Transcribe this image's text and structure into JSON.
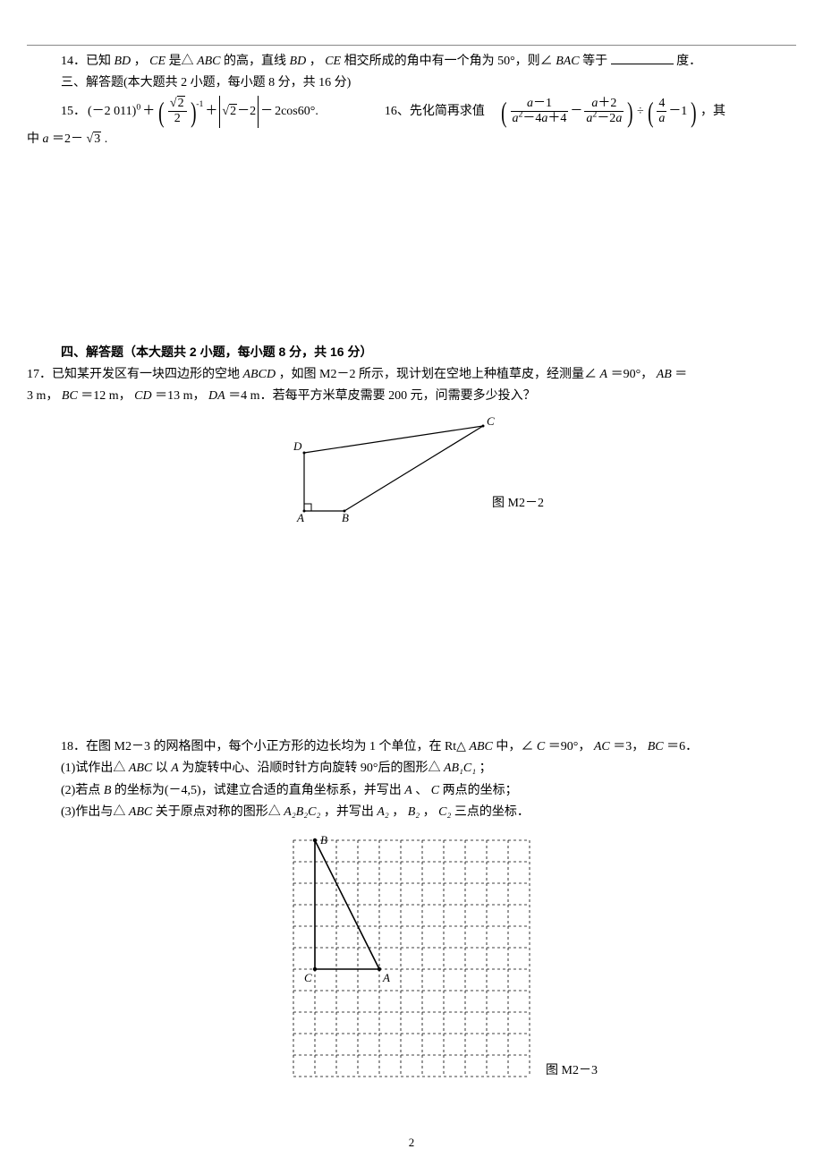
{
  "q14": {
    "prefix": "14．已知 ",
    "bd": "BD",
    "sep1": "，",
    "ce": "CE",
    "t1": " 是△",
    "abc": "ABC",
    "t2": " 的高，直线 ",
    "bd2": "BD",
    "sep2": "，",
    "ce2": "CE",
    "t3": " 相交所成的角中有一个角为 50°，则∠",
    "bac": "BAC",
    "t4": " 等于",
    "unit": "度．"
  },
  "section3": "三、解答题(本大题共 2 小题，每小题 8 分，共 16 分)",
  "q15": {
    "label": "15．",
    "pow_base": "(－2 011)",
    "plus": "＋",
    "frac_num": "√2",
    "frac_den": "2",
    "exp": "-1",
    "plus2": "＋",
    "abs_inner": "√2－2",
    "minus": "－",
    "cos": "2cos60°."
  },
  "q16": {
    "label": "16、先化简再求值",
    "f1n": "a－1",
    "f1d": "a²－4a＋4",
    "f2n": "a＋2",
    "f2d": "a²－2a",
    "f3n": "4",
    "f3d": "a",
    "tail": "，其"
  },
  "q16line2": {
    "t1": "中 ",
    "a": "a",
    "eq": "＝2－",
    "rad": "3",
    "dot": "."
  },
  "section4": "四、解答题（本大题共 2 小题，每小题 8 分，共 16 分）",
  "q17": {
    "l1a": "17．已知某开发区有一块四边形的空地 ",
    "abcd": "ABCD",
    "l1b": "，如图 M2－2 所示，现计划在空地上种植草皮，经测量∠",
    "A": "A",
    "l1c": "＝90°，",
    "AB": "AB",
    "eq": "＝",
    "l2a": "3 m，",
    "BC": "BC",
    "l2b": "＝12 m，",
    "CD": "CD",
    "l2c": "＝13 m，",
    "DA": "DA",
    "l2d": "＝4 m．若每平方米草皮需要 200 元，问需要多少投入？"
  },
  "fig1": {
    "caption": "图 M2－2",
    "A": "A",
    "B": "B",
    "C": "C",
    "D": "D"
  },
  "q18": {
    "l1a": "18．在图 M2－3 的网格图中，每个小正方形的边长均为 1 个单位，在 Rt△",
    "abc": "ABC",
    "l1b": " 中，∠",
    "C": "C",
    "l1c": "＝90°，",
    "AC": "AC",
    "l1d": "＝3，",
    "BC": "BC",
    "l1e": "＝6．",
    "l2a": "(1)试作出△",
    "abc2": "ABC",
    "l2b": " 以 ",
    "A2": "A",
    "l2c": " 为旋转中心、沿顺时针方向旋转 90°后的图形△",
    "ab1c1": "AB₁C₁",
    "l2d": "；",
    "l3a": "(2)若点 ",
    "B3": "B",
    "l3b": " 的坐标为(－4,5)，试建立合适的直角坐标系，并写出 ",
    "A3": "A",
    "l3c": "、",
    "C3": "C",
    "l3d": " 两点的坐标；",
    "l4a": "(3)作出与△",
    "abc4": "ABC",
    "l4b": " 关于原点对称的图形△",
    "a2b2c2": "A₂B₂C₂",
    "l4c": "，并写出 ",
    "A4": "A₂",
    "l4d": "，",
    "B4": "B₂",
    "l4e": "，",
    "C4": "C₂",
    "l4f": " 三点的坐标．"
  },
  "fig2": {
    "caption": "图 M2－3",
    "A": "A",
    "B": "B",
    "C": "C",
    "grid_cols": 11,
    "grid_rows": 11,
    "cell": 24
  },
  "page_num": "2"
}
